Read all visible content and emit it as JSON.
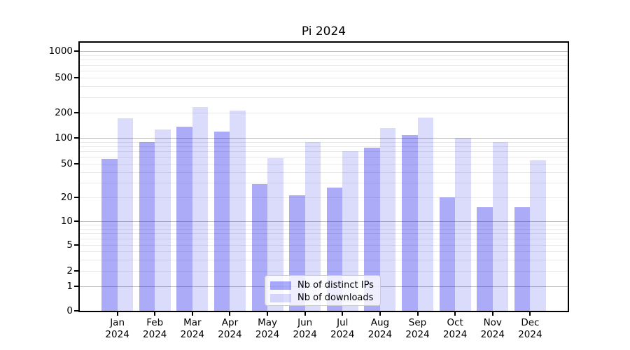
{
  "title": "Pi 2024",
  "chart_data": {
    "type": "bar",
    "title": "Pi 2024",
    "yscale": "symlog",
    "ylim": [
      0,
      1250
    ],
    "grid": true,
    "legend_position": "lower center",
    "yticks": [
      0,
      1,
      2,
      5,
      10,
      20,
      50,
      100,
      200,
      500,
      1000
    ],
    "categories": [
      "Jan",
      "Feb",
      "Mar",
      "Apr",
      "May",
      "Jun",
      "Jul",
      "Aug",
      "Sep",
      "Oct",
      "Nov",
      "Dec"
    ],
    "xtick_year": "2024",
    "series": [
      {
        "name": "Nb of distinct IPs",
        "color": "rgba(15,15,235,0.35)",
        "values": [
          57,
          90,
          135,
          120,
          29,
          21,
          26,
          77,
          107,
          20,
          15,
          15
        ]
      },
      {
        "name": "Nb of downloads",
        "color": "rgba(15,15,235,0.15)",
        "values": [
          170,
          125,
          230,
          210,
          58,
          90,
          70,
          130,
          175,
          100,
          90,
          55
        ]
      }
    ],
    "colors": {
      "major_grid": "#bdbdbd",
      "minor_grid": "#e9e9e9",
      "spine": "#000000",
      "legend_border": "#cccccc"
    }
  }
}
